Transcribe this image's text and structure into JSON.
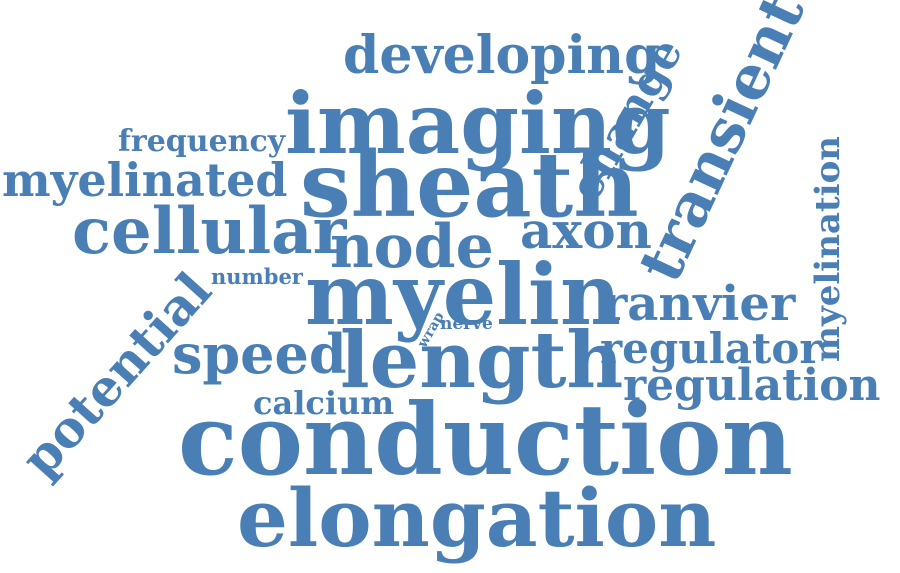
{
  "colors": {
    "word": "#4a7fb5",
    "background": "#ffffff"
  },
  "words": {
    "developing": "developing",
    "imaging": "imaging",
    "change": "change",
    "transient": "transient",
    "frequency": "frequency",
    "myelinated": "myelinated",
    "sheath": "sheath",
    "myelination": "myelination",
    "cellular": "cellular",
    "node": "node",
    "axon": "axon",
    "number": "number",
    "myelin": "myelin",
    "ranvier": "ranvier",
    "potential": "potential",
    "wrap": "wrap",
    "nerve": "nerve",
    "speed": "speed",
    "length": "length",
    "regulator": "regulator",
    "regulation": "regulation",
    "calcium": "calcium",
    "conduction": "conduction",
    "elongation": "elongation"
  }
}
